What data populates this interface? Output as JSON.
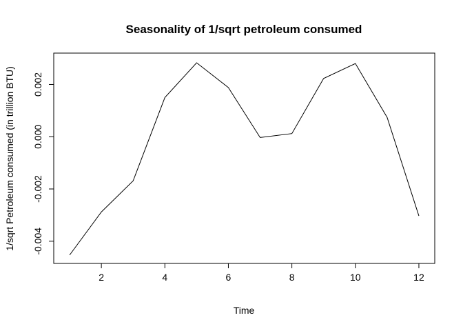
{
  "chart_data": {
    "type": "line",
    "title": "Seasonality of 1/sqrt petroleum consumed",
    "xlabel": "Time",
    "ylabel": "1/sqrt Petroleum consumed (in trillion BTU)",
    "x": [
      1,
      2,
      3,
      4,
      5,
      6,
      7,
      8,
      9,
      10,
      11,
      12
    ],
    "series": [
      {
        "values": [
          -0.00453,
          -0.00288,
          -0.00169,
          0.0015,
          0.00283,
          0.00188,
          -3e-05,
          0.00012,
          0.00223,
          0.0028,
          0.00074,
          -0.00303
        ]
      }
    ],
    "xlim": [
      0.5,
      12.5
    ],
    "ylim": [
      -0.00485,
      0.0032
    ],
    "xticks": [
      2,
      4,
      6,
      8,
      10,
      12
    ],
    "xtick_labels": [
      "2",
      "4",
      "6",
      "8",
      "10",
      "12"
    ],
    "yticks": [
      -0.004,
      -0.002,
      0,
      0.002
    ],
    "ytick_labels": [
      "-0.004",
      "-0.002",
      "0.000",
      "0.002"
    ],
    "grid": false,
    "legend": "none",
    "line_color": "#000000"
  }
}
